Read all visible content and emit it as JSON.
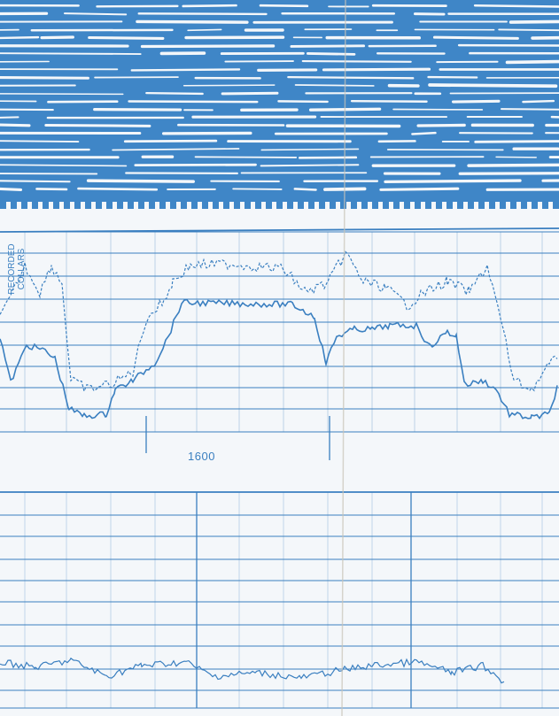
{
  "log": {
    "depth_label": "1600",
    "curve_label_line1": "RECORDED",
    "curve_label_line2": "COLLARS"
  },
  "colors": {
    "ink": "#3a7fc0",
    "band": "#3f86c7",
    "paper": "#f4f7fa"
  }
}
